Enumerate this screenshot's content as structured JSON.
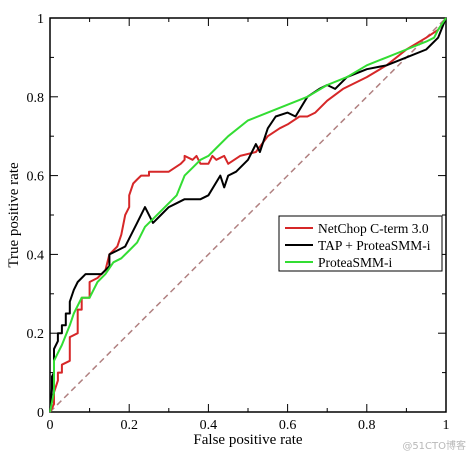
{
  "chart_data": {
    "type": "line",
    "xlabel": "False positive rate",
    "ylabel": "True positive rate",
    "xlim": [
      0,
      1
    ],
    "ylim": [
      0,
      1
    ],
    "xticks": [
      "0",
      "0.2",
      "0.4",
      "0.6",
      "0.8",
      "1"
    ],
    "yticks": [
      "0",
      "0.2",
      "0.4",
      "0.6",
      "0.8",
      "1"
    ],
    "grid": false,
    "legend_position": "middle-right",
    "diagonal_color": "#b08080",
    "series": [
      {
        "name": "NetChop C-term 3.0",
        "color": "#d62728",
        "x": [
          0,
          0.01,
          0.01,
          0.02,
          0.02,
          0.03,
          0.03,
          0.05,
          0.05,
          0.07,
          0.07,
          0.08,
          0.08,
          0.1,
          0.1,
          0.12,
          0.14,
          0.15,
          0.17,
          0.18,
          0.19,
          0.2,
          0.2,
          0.21,
          0.22,
          0.23,
          0.25,
          0.25,
          0.28,
          0.3,
          0.33,
          0.34,
          0.34,
          0.36,
          0.37,
          0.38,
          0.4,
          0.41,
          0.42,
          0.44,
          0.45,
          0.48,
          0.52,
          0.55,
          0.58,
          0.6,
          0.63,
          0.65,
          0.67,
          0.7,
          0.74,
          0.8,
          0.85,
          0.9,
          0.95,
          0.98,
          1.0
        ],
        "y": [
          0,
          0.02,
          0.05,
          0.08,
          0.1,
          0.1,
          0.12,
          0.13,
          0.19,
          0.2,
          0.26,
          0.26,
          0.29,
          0.29,
          0.33,
          0.34,
          0.36,
          0.4,
          0.42,
          0.45,
          0.5,
          0.52,
          0.55,
          0.58,
          0.59,
          0.6,
          0.6,
          0.61,
          0.61,
          0.61,
          0.63,
          0.64,
          0.65,
          0.64,
          0.65,
          0.63,
          0.63,
          0.65,
          0.64,
          0.65,
          0.63,
          0.65,
          0.66,
          0.7,
          0.72,
          0.73,
          0.75,
          0.75,
          0.76,
          0.79,
          0.82,
          0.85,
          0.88,
          0.92,
          0.95,
          0.97,
          1.0
        ]
      },
      {
        "name": "TAP + ProteaSMM-i",
        "color": "#000000",
        "x": [
          0,
          0.005,
          0.005,
          0.01,
          0.01,
          0.02,
          0.02,
          0.03,
          0.03,
          0.04,
          0.04,
          0.05,
          0.05,
          0.06,
          0.07,
          0.08,
          0.09,
          0.1,
          0.13,
          0.15,
          0.15,
          0.17,
          0.19,
          0.2,
          0.22,
          0.24,
          0.26,
          0.28,
          0.3,
          0.32,
          0.34,
          0.38,
          0.4,
          0.43,
          0.44,
          0.45,
          0.47,
          0.5,
          0.52,
          0.53,
          0.55,
          0.57,
          0.6,
          0.62,
          0.65,
          0.68,
          0.7,
          0.72,
          0.75,
          0.8,
          0.85,
          0.9,
          0.95,
          0.98,
          1.0
        ],
        "y": [
          0,
          0.06,
          0.09,
          0.1,
          0.16,
          0.18,
          0.2,
          0.2,
          0.22,
          0.22,
          0.25,
          0.25,
          0.28,
          0.31,
          0.33,
          0.34,
          0.35,
          0.35,
          0.35,
          0.37,
          0.4,
          0.41,
          0.42,
          0.44,
          0.48,
          0.52,
          0.48,
          0.5,
          0.52,
          0.53,
          0.54,
          0.54,
          0.55,
          0.6,
          0.57,
          0.6,
          0.61,
          0.64,
          0.68,
          0.66,
          0.72,
          0.75,
          0.76,
          0.75,
          0.8,
          0.82,
          0.83,
          0.82,
          0.85,
          0.87,
          0.88,
          0.9,
          0.92,
          0.95,
          1.0
        ]
      },
      {
        "name": "ProteaSMM-i",
        "color": "#33dd33",
        "x": [
          0,
          0.01,
          0.01,
          0.02,
          0.03,
          0.05,
          0.06,
          0.08,
          0.1,
          0.12,
          0.14,
          0.16,
          0.18,
          0.2,
          0.22,
          0.24,
          0.26,
          0.28,
          0.3,
          0.32,
          0.34,
          0.36,
          0.38,
          0.4,
          0.42,
          0.45,
          0.5,
          0.55,
          0.6,
          0.65,
          0.7,
          0.75,
          0.8,
          0.85,
          0.9,
          0.95,
          0.97,
          0.98,
          1.0
        ],
        "y": [
          0,
          0.05,
          0.13,
          0.15,
          0.17,
          0.22,
          0.25,
          0.29,
          0.29,
          0.33,
          0.35,
          0.38,
          0.39,
          0.41,
          0.43,
          0.47,
          0.49,
          0.51,
          0.53,
          0.55,
          0.6,
          0.62,
          0.64,
          0.65,
          0.67,
          0.7,
          0.74,
          0.76,
          0.78,
          0.8,
          0.83,
          0.85,
          0.88,
          0.9,
          0.92,
          0.94,
          0.95,
          0.97,
          1.0
        ]
      }
    ]
  },
  "watermark": "@51CTO博客"
}
